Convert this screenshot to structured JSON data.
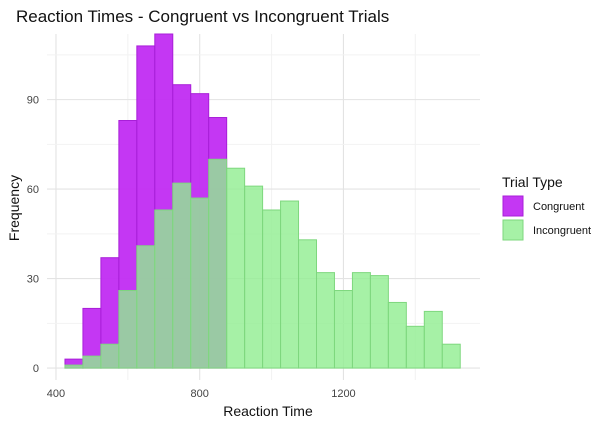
{
  "chart_data": {
    "type": "histogram",
    "title": "Reaction Times - Congruent vs Incongruent Trials",
    "xlabel": "Reaction Time",
    "ylabel": "Frequency",
    "xlim": [
      375,
      1580
    ],
    "ylim": [
      -4,
      112
    ],
    "x_ticks": [
      400,
      800,
      1200
    ],
    "y_ticks": [
      0,
      30,
      60,
      90
    ],
    "grid": true,
    "legend": {
      "title": "Trial Type",
      "position": "right"
    },
    "bin_edges": [
      425,
      475,
      525,
      575,
      625,
      675,
      725,
      775,
      825,
      875,
      925,
      975,
      1025,
      1075,
      1125,
      1175,
      1225,
      1275,
      1325,
      1375,
      1425,
      1475,
      1525
    ],
    "series": [
      {
        "name": "Congruent",
        "fill": "#c12cf2",
        "stroke": "#a81fd8",
        "opacity": 0.95,
        "values": [
          3,
          20,
          37,
          83,
          108,
          112,
          95,
          92,
          84,
          0,
          0,
          0,
          0,
          0,
          0,
          0,
          0,
          0,
          0,
          0,
          0,
          0
        ]
      },
      {
        "name": "Incongruent",
        "fill": "#90ee90",
        "stroke": "#7ed77e",
        "opacity": 0.8,
        "values": [
          1,
          4,
          8,
          26,
          41,
          53,
          62,
          57,
          70,
          67,
          61,
          53,
          56,
          43,
          32,
          26,
          32,
          31,
          22,
          14,
          19,
          8
        ]
      }
    ]
  }
}
